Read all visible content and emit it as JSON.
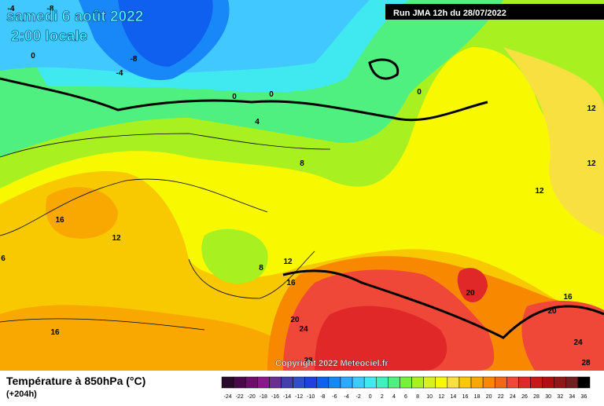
{
  "header": {
    "title": "samedi 6 août 2022",
    "subtitle": "2:00 locale",
    "run": "Run JMA 12h du 28/07/2022"
  },
  "map": {
    "labels": [
      -4,
      -8,
      0,
      -8,
      -4,
      0,
      0,
      4,
      0,
      8,
      12,
      12,
      12,
      16,
      12,
      6,
      8,
      12,
      16,
      20,
      16,
      20,
      20,
      24,
      16,
      24,
      28,
      28
    ]
  },
  "copyright": "Copyright 2022 Meteociel.fr",
  "footer": {
    "title": "Température à 850hPa (°C)",
    "lead": "(+204h)"
  },
  "scale": {
    "values": [
      -24,
      -22,
      -20,
      -18,
      -16,
      -14,
      -12,
      -10,
      -8,
      -6,
      -4,
      -2,
      0,
      2,
      4,
      6,
      8,
      10,
      12,
      14,
      16,
      18,
      20,
      22,
      24,
      26,
      28,
      30,
      32,
      34,
      36
    ],
    "colors": [
      "#2a0a2a",
      "#4a0a4a",
      "#6a106a",
      "#8a1a8a",
      "#6a3090",
      "#4040a8",
      "#3050c8",
      "#2040e0",
      "#1060f0",
      "#1888f8",
      "#30a8ff",
      "#40c8ff",
      "#40e8f0",
      "#40f0c0",
      "#50f080",
      "#78f040",
      "#a8f020",
      "#d8f020",
      "#f8f800",
      "#f8e040",
      "#f8c800",
      "#f8a800",
      "#f88800",
      "#f06818",
      "#f04838",
      "#e02828",
      "#c81818",
      "#b01010",
      "#901818",
      "#702020",
      "#000000"
    ]
  }
}
